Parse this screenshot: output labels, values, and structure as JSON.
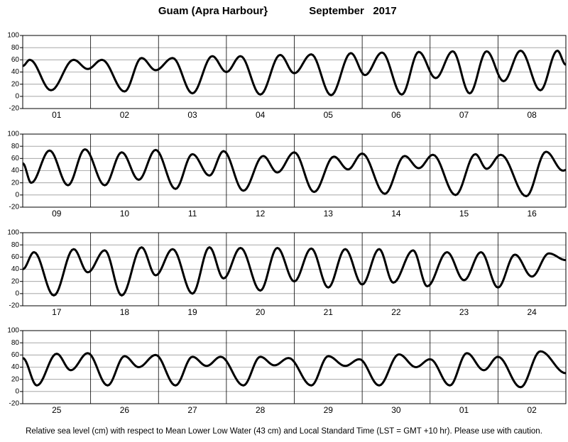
{
  "header": {
    "station": "Guam (Apra Harbour}",
    "period": "September   2017"
  },
  "footnote": "Relative sea level (cm) with respect to Mean Lower Low Water (43 cm) and Local Standard Time (LST = GMT +10 hr). Please use with caution.",
  "chart_data": [
    {
      "type": "line",
      "color": "#000000",
      "categories": [
        "01",
        "02",
        "03",
        "04",
        "05",
        "06",
        "07",
        "08"
      ],
      "xlim": [
        0,
        192
      ],
      "xticks": [
        0,
        24,
        48,
        72,
        96,
        120,
        144,
        168,
        192
      ],
      "ylim": [
        -20,
        100
      ],
      "yticks": [
        -20,
        0,
        20,
        40,
        60,
        80,
        100
      ],
      "grid": true,
      "x": [
        0,
        2.5,
        10,
        18,
        23,
        28,
        36,
        42,
        47,
        53,
        60,
        67,
        72,
        77,
        84,
        91,
        96,
        102,
        109,
        116,
        121,
        127,
        134,
        140,
        146,
        152,
        158,
        164,
        170,
        176,
        183,
        189,
        192
      ],
      "values": [
        50,
        60,
        10,
        60,
        45,
        60,
        8,
        63,
        43,
        63,
        5,
        66,
        40,
        66,
        3,
        68,
        38,
        69,
        2,
        71,
        35,
        72,
        3,
        73,
        30,
        74,
        5,
        74,
        25,
        75,
        10,
        75,
        52
      ]
    },
    {
      "type": "line",
      "color": "#000000",
      "categories": [
        "09",
        "10",
        "11",
        "12",
        "13",
        "14",
        "15",
        "16"
      ],
      "xlim": [
        0,
        192
      ],
      "xticks": [
        0,
        24,
        48,
        72,
        96,
        120,
        144,
        168,
        192
      ],
      "ylim": [
        -20,
        100
      ],
      "yticks": [
        -20,
        0,
        20,
        40,
        60,
        80,
        100
      ],
      "grid": true,
      "x": [
        0,
        3,
        9.5,
        16,
        22,
        29,
        35,
        41,
        47,
        54,
        60,
        66,
        71,
        78,
        85,
        90,
        96,
        103,
        110,
        115,
        120,
        128,
        135,
        140,
        145,
        153,
        160,
        164,
        169,
        178,
        185,
        191,
        192
      ],
      "values": [
        52,
        20,
        73,
        16,
        75,
        16,
        70,
        25,
        74,
        10,
        67,
        32,
        72,
        7,
        64,
        37,
        70,
        5,
        63,
        42,
        68,
        2,
        64,
        44,
        66,
        0,
        67,
        43,
        66,
        -2,
        71,
        40,
        41
      ]
    },
    {
      "type": "line",
      "color": "#000000",
      "categories": [
        "17",
        "18",
        "19",
        "20",
        "21",
        "22",
        "23",
        "24"
      ],
      "xlim": [
        0,
        192
      ],
      "xticks": [
        0,
        24,
        48,
        72,
        96,
        120,
        144,
        168,
        192
      ],
      "ylim": [
        -20,
        100
      ],
      "yticks": [
        -20,
        0,
        20,
        40,
        60,
        80,
        100
      ],
      "grid": true,
      "x": [
        0,
        4,
        11,
        18,
        23,
        29,
        35,
        42,
        47,
        53,
        60,
        66,
        71,
        77,
        84,
        90,
        96,
        102,
        108,
        114,
        120,
        126,
        131,
        138,
        143,
        150,
        156,
        162,
        168,
        174,
        180,
        186,
        192
      ],
      "values": [
        40,
        68,
        -3,
        73,
        35,
        71,
        -3,
        76,
        30,
        73,
        0,
        76,
        25,
        75,
        5,
        75,
        20,
        74,
        10,
        73,
        15,
        73,
        18,
        71,
        12,
        68,
        22,
        68,
        10,
        64,
        28,
        66,
        55
      ]
    },
    {
      "type": "line",
      "color": "#000000",
      "categories": [
        "25",
        "26",
        "27",
        "28",
        "29",
        "30",
        "01",
        "02"
      ],
      "xlim": [
        0,
        192
      ],
      "xticks": [
        0,
        24,
        48,
        72,
        96,
        120,
        144,
        168,
        192
      ],
      "ylim": [
        -20,
        100
      ],
      "yticks": [
        -20,
        0,
        20,
        40,
        60,
        80,
        100
      ],
      "grid": true,
      "x": [
        0,
        5,
        12,
        17,
        23,
        30,
        36,
        41,
        47,
        54,
        60,
        65,
        70,
        78,
        84,
        89,
        94,
        102,
        108,
        114,
        119,
        126,
        133,
        139,
        144,
        151,
        157,
        163,
        168,
        176,
        183,
        192
      ],
      "values": [
        55,
        10,
        62,
        35,
        63,
        10,
        58,
        40,
        60,
        10,
        57,
        42,
        57,
        10,
        57,
        43,
        55,
        10,
        58,
        42,
        53,
        10,
        61,
        40,
        53,
        10,
        63,
        35,
        57,
        7,
        66,
        30
      ]
    }
  ]
}
